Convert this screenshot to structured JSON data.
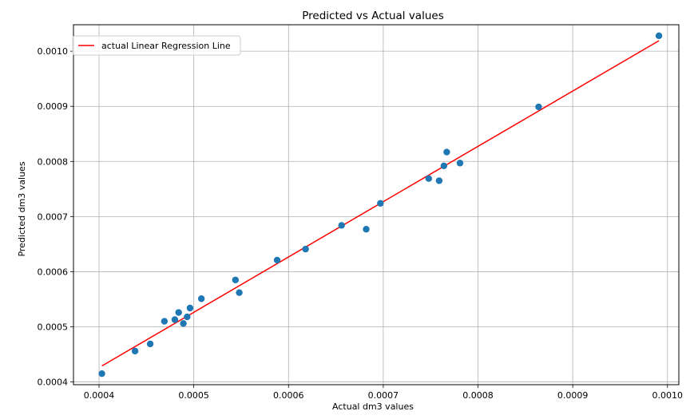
{
  "chart_data": {
    "type": "scatter",
    "title": "Predicted vs Actual values",
    "xlabel": "Actual dm3 values",
    "ylabel": "Predicted dm3 values",
    "xlim": [
      0.000373,
      0.001012
    ],
    "ylim": [
      0.000395,
      0.001048
    ],
    "xticks": [
      {
        "value": 0.0004,
        "label": "0.0004"
      },
      {
        "value": 0.0005,
        "label": "0.0005"
      },
      {
        "value": 0.0006,
        "label": "0.0006"
      },
      {
        "value": 0.0007,
        "label": "0.0007"
      },
      {
        "value": 0.0008,
        "label": "0.0008"
      },
      {
        "value": 0.0009,
        "label": "0.0009"
      },
      {
        "value": 0.001,
        "label": "0.0010"
      }
    ],
    "yticks": [
      {
        "value": 0.0004,
        "label": "0.0004"
      },
      {
        "value": 0.0005,
        "label": "0.0005"
      },
      {
        "value": 0.0006,
        "label": "0.0006"
      },
      {
        "value": 0.0007,
        "label": "0.0007"
      },
      {
        "value": 0.0008,
        "label": "0.0008"
      },
      {
        "value": 0.0009,
        "label": "0.0009"
      },
      {
        "value": 0.001,
        "label": "0.0010"
      }
    ],
    "grid": true,
    "legend_position": "top-left",
    "points": [
      {
        "x": 0.000403,
        "y": 0.000415
      },
      {
        "x": 0.000438,
        "y": 0.000456
      },
      {
        "x": 0.000454,
        "y": 0.000469
      },
      {
        "x": 0.000469,
        "y": 0.00051
      },
      {
        "x": 0.00048,
        "y": 0.000513
      },
      {
        "x": 0.000484,
        "y": 0.000526
      },
      {
        "x": 0.000489,
        "y": 0.000506
      },
      {
        "x": 0.000493,
        "y": 0.000518
      },
      {
        "x": 0.000496,
        "y": 0.000534
      },
      {
        "x": 0.000508,
        "y": 0.000551
      },
      {
        "x": 0.000544,
        "y": 0.000585
      },
      {
        "x": 0.000548,
        "y": 0.000562
      },
      {
        "x": 0.000588,
        "y": 0.000621
      },
      {
        "x": 0.000618,
        "y": 0.000641
      },
      {
        "x": 0.000656,
        "y": 0.000684
      },
      {
        "x": 0.000682,
        "y": 0.000677
      },
      {
        "x": 0.000697,
        "y": 0.000724
      },
      {
        "x": 0.000748,
        "y": 0.000769
      },
      {
        "x": 0.000759,
        "y": 0.000765
      },
      {
        "x": 0.000764,
        "y": 0.000792
      },
      {
        "x": 0.000767,
        "y": 0.000817
      },
      {
        "x": 0.000781,
        "y": 0.000797
      },
      {
        "x": 0.000864,
        "y": 0.000899
      },
      {
        "x": 0.000991,
        "y": 0.001028
      }
    ],
    "regression_line": {
      "name": "actual Linear Regression Line",
      "x": [
        0.000403,
        0.000991
      ],
      "y": [
        0.000429,
        0.001019
      ]
    },
    "colors": {
      "points": "#1f77b4",
      "line": "#ff0000",
      "grid": "#b0b0b0"
    }
  }
}
